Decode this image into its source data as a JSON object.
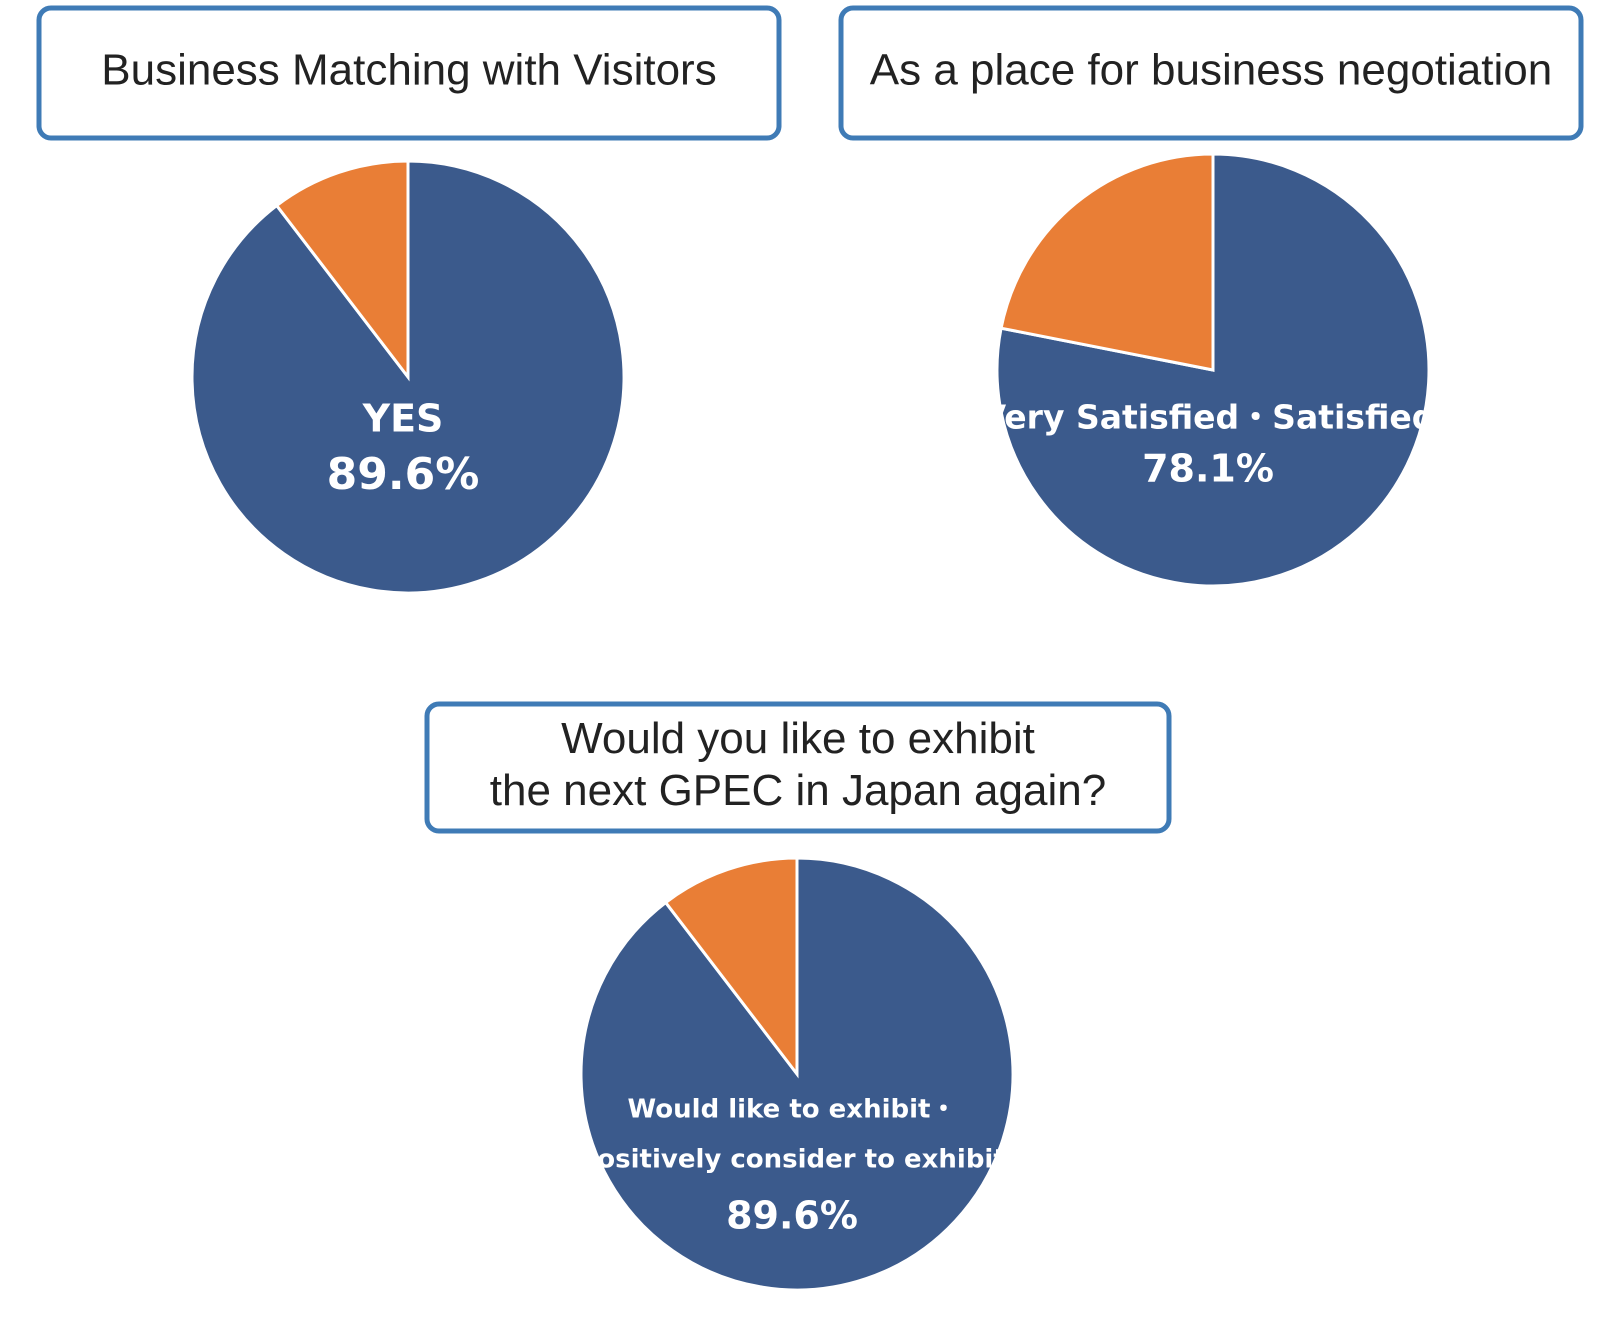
{
  "chart_data": [
    {
      "type": "pie",
      "title": "Business Matching with Visitors",
      "categories": [
        "YES",
        null
      ],
      "values": [
        89.6,
        10.4
      ],
      "value_labels": [
        "89.6%",
        null
      ],
      "colors": [
        "#3b5a8c",
        "#e97e36"
      ]
    },
    {
      "type": "pie",
      "title": "As a place for business negotiation",
      "categories": [
        "Very Satisfied・Satisfied",
        null
      ],
      "values": [
        78.1,
        21.9
      ],
      "value_labels": [
        "78.1%",
        null
      ],
      "colors": [
        "#3b5a8c",
        "#e97e36"
      ]
    },
    {
      "type": "pie",
      "title": [
        "Would you like to exhibit",
        "the next GPEC in Japan again?"
      ],
      "categories": [
        [
          "Would like to exhibit・",
          "Positively consider to exhibit"
        ],
        null
      ],
      "values": [
        89.6,
        10.4
      ],
      "value_labels": [
        "89.6%",
        null
      ],
      "colors": [
        "#3b5a8c",
        "#e97e36"
      ]
    }
  ]
}
